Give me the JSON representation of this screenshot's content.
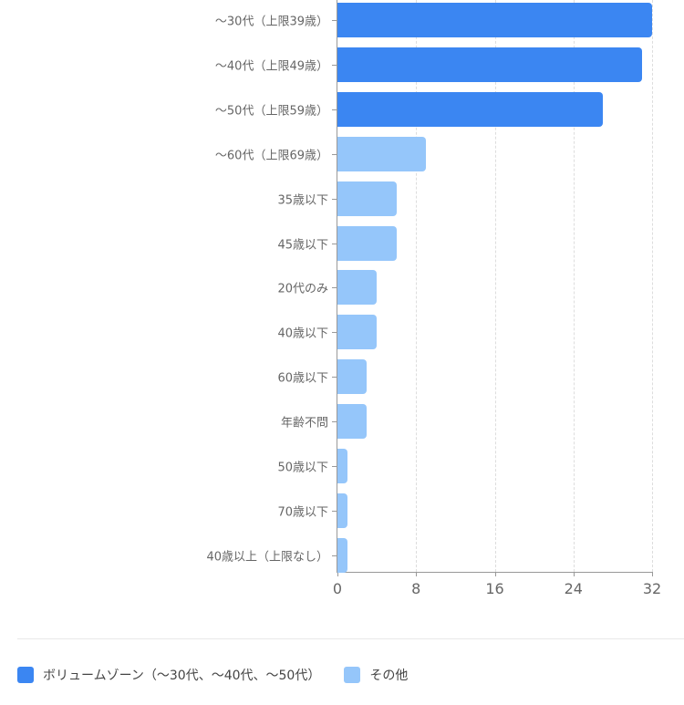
{
  "chart_data": {
    "type": "bar",
    "orientation": "horizontal",
    "title": "",
    "xlabel": "",
    "ylabel": "",
    "xlim": [
      0,
      32
    ],
    "xticks": [
      0,
      8,
      16,
      24,
      32
    ],
    "grid": true,
    "legend_position": "bottom",
    "categories": [
      "〜30代（上限39歳）",
      "〜40代（上限49歳）",
      "〜50代（上限59歳）",
      "〜60代（上限69歳）",
      "35歳以下",
      "45歳以下",
      "20代のみ",
      "40歳以下",
      "60歳以下",
      "年齢不問",
      "50歳以下",
      "70歳以下",
      "40歳以上（上限なし）"
    ],
    "values": [
      32,
      31,
      27,
      9,
      6,
      6,
      4,
      4,
      3,
      3,
      1,
      1,
      1
    ],
    "series_membership": [
      "volume",
      "volume",
      "volume",
      "other",
      "other",
      "other",
      "other",
      "other",
      "other",
      "other",
      "other",
      "other",
      "other"
    ],
    "series": [
      {
        "name": "ボリュームゾーン（〜30代、〜40代、〜50代）",
        "color": "#3b86f2"
      },
      {
        "name": "その他",
        "color": "#95c6fa"
      }
    ]
  },
  "legend": {
    "volume_label": "ボリュームゾーン（〜30代、〜40代、〜50代）",
    "other_label": "その他"
  },
  "colors": {
    "volume": "#3b86f2",
    "other": "#95c6fa"
  }
}
